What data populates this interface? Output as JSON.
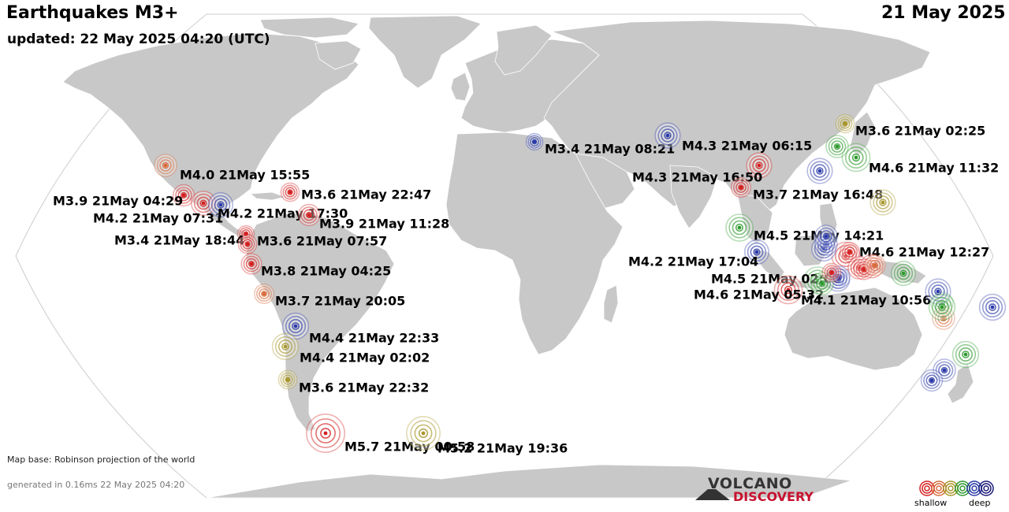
{
  "header": {
    "title": "Earthquakes M3+",
    "updated": "updated: 22 May 2025 04:20 (UTC)",
    "date": "21 May 2025"
  },
  "footer": {
    "map_base": "Map base: Robinson projection of the world",
    "generated": "generated in 0.16ms 22 May 2025 04:20"
  },
  "logo": {
    "top": "VOLCANO",
    "bottom": "DISCOVERY"
  },
  "legend": {
    "shallow": "shallow",
    "deep": "deep",
    "colors": [
      "#d42020",
      "#d86a3a",
      "#a8962a",
      "#2e9a2e",
      "#2a3aa8",
      "#1a1a7a"
    ]
  },
  "colors": {
    "ocean": "#ffffff",
    "land": "#c8c8c8",
    "land_border": "#ffffff",
    "globe_outline": "#cccccc",
    "depth": {
      "shallow": "#d42020",
      "mid_shallow": "#d86a3a",
      "mid": "#a8962a",
      "mid_deep": "#2e9a2e",
      "deep": "#2a3aa8",
      "very_deep": "#1a1a7a"
    }
  },
  "earthquakes": [
    {
      "label": "M4.0 21May 15:55",
      "color": "#d86a3a",
      "mag": 4.0
    },
    {
      "label": "M3.9 21May 04:29",
      "color": "#d42020",
      "mag": 3.9
    },
    {
      "label": "M4.2 21May 07:31",
      "color": "#d42020",
      "mag": 4.2
    },
    {
      "label": "M4.2 21May 17:30",
      "color": "#2a3aa8",
      "mag": 4.2
    },
    {
      "label": "M3.6 21May 22:47",
      "color": "#d42020",
      "mag": 3.6
    },
    {
      "label": "M3.9 21May 11:28",
      "color": "#d42020",
      "mag": 3.9
    },
    {
      "label": "M3.4 21May 18:44",
      "color": "#d42020",
      "mag": 3.4
    },
    {
      "label": "M3.6 21May 07:57",
      "color": "#d42020",
      "mag": 3.6
    },
    {
      "label": "M3.8 21May 04:25",
      "color": "#d42020",
      "mag": 3.8
    },
    {
      "label": "M3.7 21May 20:05",
      "color": "#d86a3a",
      "mag": 3.7
    },
    {
      "label": "M4.4 21May 22:33",
      "color": "#2a3aa8",
      "mag": 4.4
    },
    {
      "label": "M4.4 21May 02:02",
      "color": "#a8962a",
      "mag": 4.4
    },
    {
      "label": "M3.6 21May 22:32",
      "color": "#a8962a",
      "mag": 3.6
    },
    {
      "label": "M5.7 21May 00:58",
      "color": "#d42020",
      "mag": 5.7
    },
    {
      "label": "M5.2 21May 19:36",
      "color": "#a8962a",
      "mag": 5.2
    },
    {
      "label": "M3.4 21May 08:21",
      "color": "#2a3aa8",
      "mag": 3.4
    },
    {
      "label": "M4.3 21May 06:15",
      "color": "#2a3aa8",
      "mag": 4.3
    },
    {
      "label": "M4.3 21May 16:50",
      "color": "#d42020",
      "mag": 4.3
    },
    {
      "label": "M3.7 21May 16:48",
      "color": "#d42020",
      "mag": 3.7
    },
    {
      "label": "M3.6 21May 02:25",
      "color": "#a8962a",
      "mag": 3.6
    },
    {
      "label": "M4.6 21May 11:32",
      "color": "#2e9a2e",
      "mag": 4.6
    },
    {
      "label": "M4.5 21May 14:21",
      "color": "#2e9a2e",
      "mag": 4.5
    },
    {
      "label": "M4.2 21May 17:04",
      "color": "#2a3aa8",
      "mag": 4.2
    },
    {
      "label": "M4.6 21May 12:27",
      "color": "#d42020",
      "mag": 4.6
    },
    {
      "label": "M4.5 21May 02:00",
      "color": "#2e9a2e",
      "mag": 4.5
    },
    {
      "label": "M4.6 21May 05:32",
      "color": "#d42020",
      "mag": 4.6
    },
    {
      "label": "M4.1 21May 10:56",
      "color": "#2a3aa8",
      "mag": 4.1
    },
    {
      "label": "",
      "color": "#a8962a",
      "mag": 4.3
    },
    {
      "label": "",
      "color": "#2a3aa8",
      "mag": 4.3
    },
    {
      "label": "",
      "color": "#2e9a2e",
      "mag": 4.0
    },
    {
      "label": "",
      "color": "#2a3aa8",
      "mag": 4.2
    },
    {
      "label": "",
      "color": "#d42020",
      "mag": 4.0
    },
    {
      "label": "",
      "color": "#2a3aa8",
      "mag": 4.0
    },
    {
      "label": "",
      "color": "#2e9a2e",
      "mag": 4.2
    },
    {
      "label": "",
      "color": "#2e9a2e",
      "mag": 4.0
    },
    {
      "label": "",
      "color": "#2a3aa8",
      "mag": 4.3
    },
    {
      "label": "",
      "color": "#2e9a2e",
      "mag": 4.4
    },
    {
      "label": "",
      "color": "#d86a3a",
      "mag": 4.0
    },
    {
      "label": "",
      "color": "#2a3aa8",
      "mag": 4.4
    },
    {
      "label": "",
      "color": "#2e9a2e",
      "mag": 4.4
    },
    {
      "label": "",
      "color": "#2a3aa8",
      "mag": 4.0
    },
    {
      "label": "",
      "color": "#2a3aa8",
      "mag": 3.9
    },
    {
      "label": "",
      "color": "#2a3aa8",
      "mag": 4.0
    },
    {
      "label": "",
      "color": "#2a3aa8",
      "mag": 4.0
    },
    {
      "label": "",
      "color": "#d42020",
      "mag": 4.1
    },
    {
      "label": "",
      "color": "#d42020",
      "mag": 3.8
    },
    {
      "label": "",
      "color": "#d86a3a",
      "mag": 3.8
    },
    {
      "label": "",
      "color": "#d42020",
      "mag": 3.7
    },
    {
      "label": "",
      "color": "#2e9a2e",
      "mag": 4.0
    },
    {
      "label": "",
      "color": "#d42020",
      "mag": 3.6
    }
  ]
}
